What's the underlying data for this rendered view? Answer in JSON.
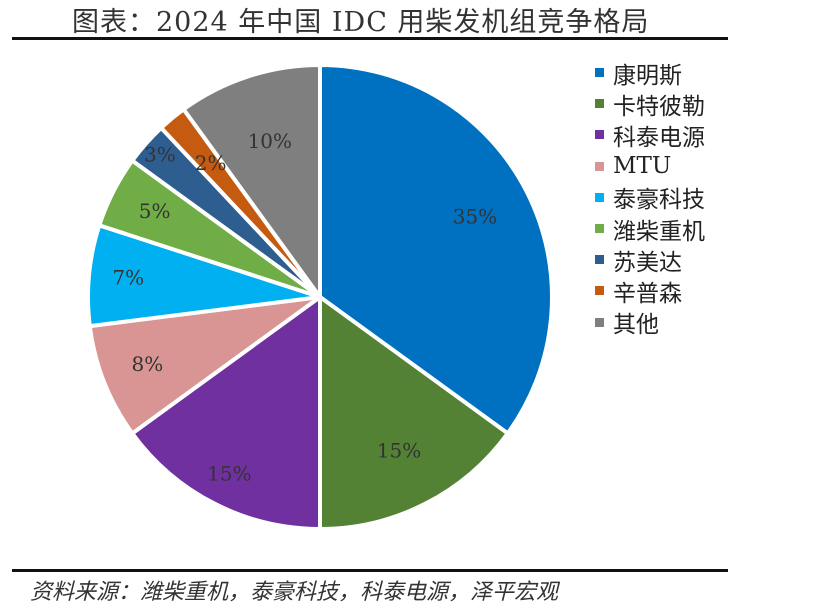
{
  "title": "图表：2024 年中国 IDC 用柴发机组竞争格局",
  "source": "资料来源：潍柴重机，泰豪科技，科泰电源，泽平宏观",
  "chart_data": {
    "type": "pie",
    "unit": "%",
    "slices": [
      {
        "name": "康明斯",
        "value": 35,
        "label": "35%",
        "color": "#0070C0"
      },
      {
        "name": "卡特彼勒",
        "value": 15,
        "label": "15%",
        "color": "#548235"
      },
      {
        "name": "科泰电源",
        "value": 15,
        "label": "15%",
        "color": "#7030A0"
      },
      {
        "name": "MTU",
        "value": 8,
        "label": "8%",
        "color": "#D99594"
      },
      {
        "name": "泰豪科技",
        "value": 7,
        "label": "7%",
        "color": "#00B0F0"
      },
      {
        "name": "潍柴重机",
        "value": 5,
        "label": "5%",
        "color": "#70AD47"
      },
      {
        "name": "苏美达",
        "value": 3,
        "label": "3%",
        "color": "#2E5D8F"
      },
      {
        "name": "辛普森",
        "value": 2,
        "label": "2%",
        "color": "#C55A11"
      },
      {
        "name": "其他",
        "value": 10,
        "label": "10%",
        "color": "#7F7F7F"
      }
    ],
    "legend_position": "right"
  }
}
